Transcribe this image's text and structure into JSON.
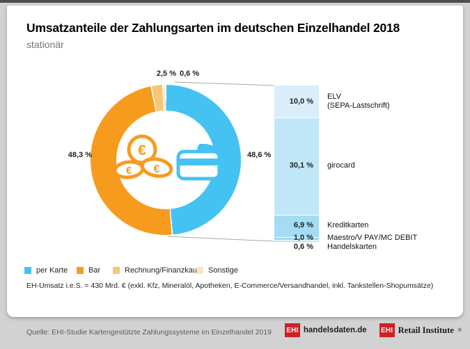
{
  "header": {
    "title": "Umsatzanteile der Zahlungsarten im deutschen Einzelhandel 2018",
    "subtitle": "stationär"
  },
  "chart_data": [
    {
      "type": "pie",
      "variant": "donut",
      "title": "Umsatzanteile der Zahlungsarten im deutschen Einzelhandel 2018",
      "subtitle": "stationär",
      "unit": "%",
      "segments": [
        {
          "label": "per Karte",
          "value": 48.6,
          "display": "48,6 %",
          "color": "#44c3f2"
        },
        {
          "label": "Bar",
          "value": 48.3,
          "display": "48,3 %",
          "color": "#f79b1f"
        },
        {
          "label": "Rechnung/Finanzkauf",
          "value": 2.5,
          "display": "2,5 %",
          "color": "#f8c678"
        },
        {
          "label": "Sonstige",
          "value": 0.6,
          "display": "0,6 %",
          "color": "#fbe4bd"
        }
      ],
      "center_icons": [
        "euro-coins-icon",
        "credit-card-icon"
      ]
    },
    {
      "type": "bar",
      "variant": "stacked-breakdown-of-per-karte",
      "total_display": "48,6 %",
      "unit": "%",
      "segments": [
        {
          "label": "ELV (SEPA-Lastschrift)",
          "label_lines": [
            "ELV",
            "(SEPA-Lastschrift)"
          ],
          "value": 10.0,
          "display": "10,0 %",
          "color": "#daeefa"
        },
        {
          "label": "girocard",
          "value": 30.1,
          "display": "30,1 %",
          "color": "#c0e7f8"
        },
        {
          "label": "Kreditkarten",
          "value": 6.9,
          "display": "6,9 %",
          "color": "#a3dcf4"
        },
        {
          "label": "Maestro/V PAY/MC DEBIT",
          "value": 1.0,
          "display": "1,0 %",
          "color": "#9fd4ee"
        },
        {
          "label": "Handelskarten",
          "value": 0.6,
          "display": "0,6 %",
          "color": "#b9e4f6"
        }
      ]
    }
  ],
  "footnote": {
    "text": "EH-Umsatz i.e.S. = 430 Mrd. € (exkl. Kfz, Mineralöl, Apotheken, E-Commerce/Versandhandel, inkl. Tankstellen-Shopumsätze)"
  },
  "footer": {
    "source": "Quelle: EHI-Studie Kartengestützte Zahlungssysteme im Einzelhandel 2019",
    "brand_red": "#cf2027",
    "logos": [
      {
        "abbr": "EHI",
        "text": "handelsdaten.de"
      },
      {
        "abbr": "EHI",
        "text": "Retail Institute",
        "registered": "®"
      }
    ]
  }
}
